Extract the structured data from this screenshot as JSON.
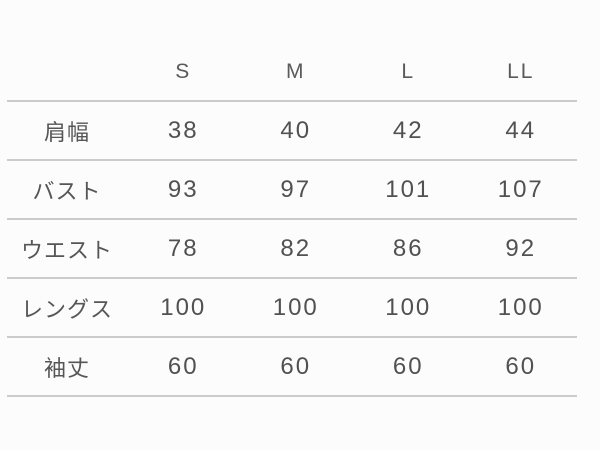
{
  "colors": {
    "background": "#fcfcfc",
    "text": "#555555",
    "separator_line": "#cbcbcb"
  },
  "chart_data": {
    "type": "table",
    "title": "",
    "columns": [
      "",
      "S",
      "M",
      "L",
      "LL"
    ],
    "rows": [
      {
        "label": "肩幅",
        "values": [
          "38",
          "40",
          "42",
          "44"
        ]
      },
      {
        "label": "バスト",
        "values": [
          "93",
          "97",
          "101",
          "107"
        ]
      },
      {
        "label": "ウエスト",
        "values": [
          "78",
          "82",
          "86",
          "92"
        ]
      },
      {
        "label": "レングス",
        "values": [
          "100",
          "100",
          "100",
          "100"
        ]
      },
      {
        "label": "袖丈",
        "values": [
          "60",
          "60",
          "60",
          "60"
        ]
      }
    ],
    "layout": {
      "grid": "horizontal-lines-only",
      "header_row": true,
      "label_column": true
    }
  }
}
